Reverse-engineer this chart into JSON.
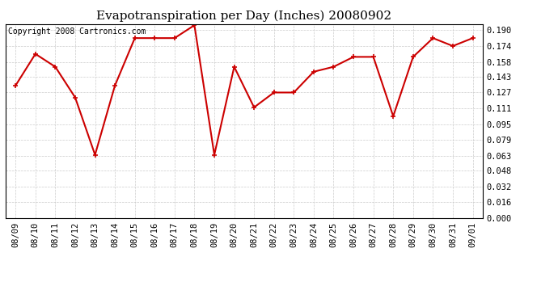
{
  "title": "Evapotranspiration per Day (Inches) 20080902",
  "copyright": "Copyright 2008 Cartronics.com",
  "dates": [
    "08/09",
    "08/10",
    "08/11",
    "08/12",
    "08/13",
    "08/14",
    "08/15",
    "08/16",
    "08/17",
    "08/18",
    "08/19",
    "08/20",
    "08/21",
    "08/22",
    "08/23",
    "08/24",
    "08/25",
    "08/26",
    "08/27",
    "08/28",
    "08/29",
    "08/30",
    "08/31",
    "09/01"
  ],
  "values": [
    0.134,
    0.166,
    0.153,
    0.122,
    0.064,
    0.134,
    0.182,
    0.182,
    0.182,
    0.195,
    0.064,
    0.153,
    0.112,
    0.127,
    0.127,
    0.148,
    0.153,
    0.163,
    0.163,
    0.103,
    0.163,
    0.182,
    0.174,
    0.182
  ],
  "line_color": "#cc0000",
  "marker": "+",
  "marker_size": 4,
  "background_color": "#ffffff",
  "grid_color": "#cccccc",
  "ylim_min": 0.0,
  "ylim_max": 0.196,
  "yticks": [
    0.0,
    0.016,
    0.032,
    0.048,
    0.063,
    0.079,
    0.095,
    0.111,
    0.127,
    0.143,
    0.158,
    0.174,
    0.19
  ],
  "ytick_labels": [
    "0.000",
    "0.016",
    "0.032",
    "0.048",
    "0.063",
    "0.079",
    "0.095",
    "0.111",
    "0.127",
    "0.143",
    "0.158",
    "0.174",
    "0.190"
  ],
  "title_fontsize": 11,
  "copyright_fontsize": 7,
  "tick_fontsize": 7.5,
  "linewidth": 1.5
}
